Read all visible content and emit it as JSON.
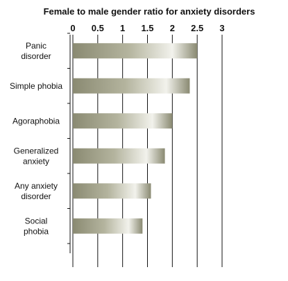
{
  "chart_data": {
    "type": "bar",
    "orientation": "horizontal",
    "title": "Female to male gender ratio for anxiety disorders",
    "xlabel": "",
    "ylabel": "",
    "categories": [
      [
        "Panic",
        "disorder"
      ],
      [
        "Simple phobia"
      ],
      [
        "Agoraphobia"
      ],
      [
        "Generalized",
        "anxiety"
      ],
      [
        "Any anxiety",
        "disorder"
      ],
      [
        "Social",
        "phobia"
      ]
    ],
    "values": [
      2.5,
      2.35,
      2.0,
      1.85,
      1.57,
      1.4
    ],
    "xlim": [
      0,
      3
    ],
    "xticks": [
      "0",
      "0.5",
      "1",
      "1.5",
      "2",
      "2.5",
      "3"
    ],
    "x_axis_position": "top",
    "grid": true,
    "legend": "none",
    "colors": {
      "bar_dark": "#8a8a72",
      "bar_light": "#f2f2ec",
      "grid": "#111111",
      "axis": "#111111",
      "text": "#111111"
    }
  }
}
